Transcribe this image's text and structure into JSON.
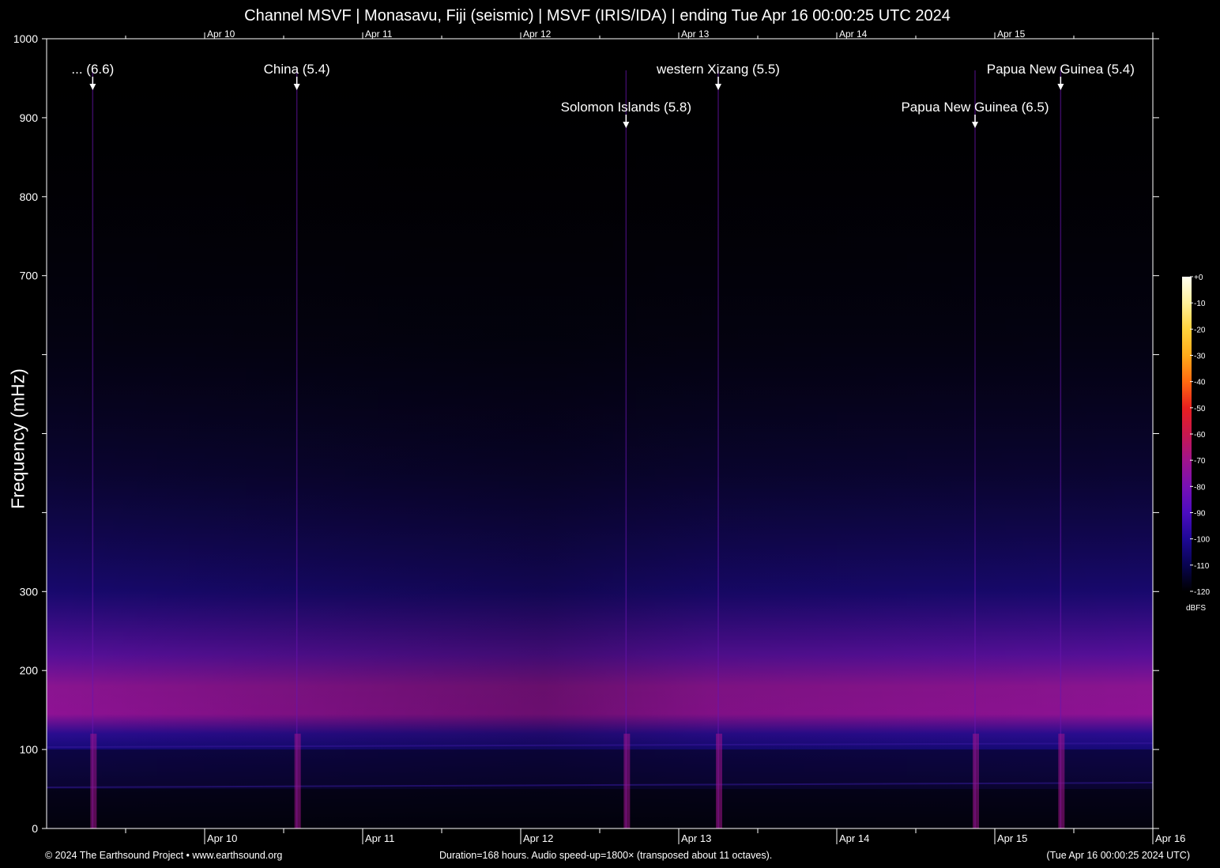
{
  "title": "Channel MSVF | Monasavu, Fiji (seismic) | MSVF (IRIS/IDA) | ending Tue Apr 16 00:00:25 UTC 2024",
  "footer": {
    "left": "© 2024 The Earthsound Project • www.earthsound.org",
    "middle": "Duration=168 hours. Audio speed-up=1800× (transposed about 11 octaves).",
    "right": "(Tue Apr 16 00:00:25 2024 UTC)"
  },
  "chart_data": {
    "type": "heatmap",
    "title": "Channel MSVF | Monasavu, Fiji (seismic) | MSVF (IRIS/IDA) | ending Tue Apr 16 00:00:25 UTC 2024",
    "ylabel": "Frequency (mHz)",
    "xlabel": "",
    "x_ticks": [
      "Apr 10",
      "Apr 11",
      "Apr 12",
      "Apr 13",
      "Apr 14",
      "Apr 15",
      "Apr 16"
    ],
    "y_tick_labels": [
      "0",
      "100",
      "200",
      "300",
      "700",
      "800",
      "900",
      "1000"
    ],
    "ylim": [
      0,
      1000
    ],
    "duration_hours": 168,
    "colorbar": {
      "unit": "dBFS",
      "ticks": [
        "+0",
        "-10",
        "-20",
        "-30",
        "-40",
        "-50",
        "-60",
        "-70",
        "-80",
        "-90",
        "-100",
        "-110",
        "-120"
      ],
      "colors": [
        "#fffff0",
        "#fff09a",
        "#ffd23c",
        "#ffaa1a",
        "#ff6a10",
        "#e81f1f",
        "#c8184e",
        "#a0148c",
        "#7810b4",
        "#4c0cc0",
        "#1e0896",
        "#080450",
        "#000000"
      ]
    },
    "events": [
      {
        "label": "... (6.6)",
        "time": "Apr 9 ~07:00",
        "row": 1
      },
      {
        "label": "China (5.4)",
        "time": "Apr 10 ~14:00",
        "row": 1
      },
      {
        "label": "Solomon Islands (5.8)",
        "time": "Apr 12 ~16:00",
        "row": 2
      },
      {
        "label": "western Xizang (5.5)",
        "time": "Apr 13 ~06:00",
        "row": 1
      },
      {
        "label": "Papua New Guinea (6.5)",
        "time": "Apr 14 ~21:00",
        "row": 2
      },
      {
        "label": "Papua New Guinea (5.4)",
        "time": "Apr 15 ~10:00",
        "row": 1
      }
    ]
  }
}
